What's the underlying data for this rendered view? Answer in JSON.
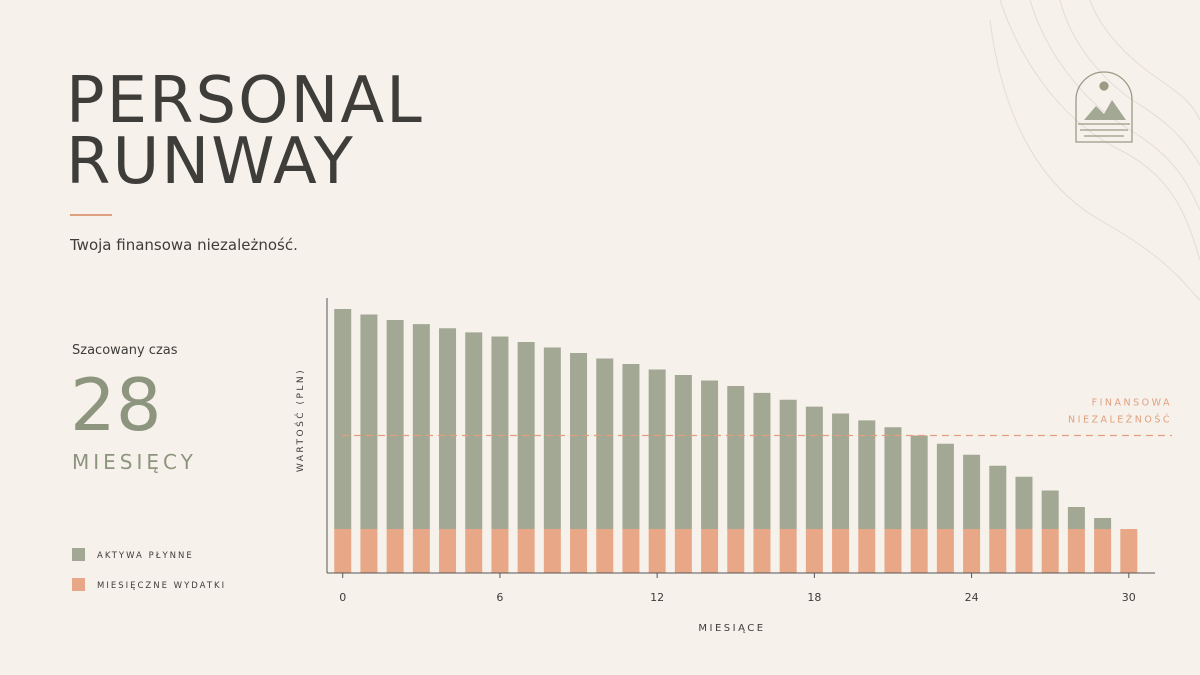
{
  "header": {
    "title_lines": [
      "PERSONAL",
      "RUNWAY"
    ],
    "subtitle": "Twoja finansowa niezależność."
  },
  "summary": {
    "label": "Szacowany czas",
    "value": 28,
    "unit": "MIESIĘCY"
  },
  "chart_data": {
    "type": "stacked_bar",
    "x": [
      0,
      1,
      2,
      3,
      4,
      5,
      6,
      7,
      8,
      9,
      10,
      11,
      12,
      13,
      14,
      15,
      16,
      17,
      18,
      19,
      20,
      21,
      22,
      23,
      24,
      25,
      26,
      27,
      28,
      29,
      30
    ],
    "series": [
      {
        "name": "AKTYWA PŁYNNE",
        "color": "#a3a895",
        "values": [
          80,
          78,
          76,
          74.5,
          73,
          71.5,
          70,
          68,
          66,
          64,
          62,
          60,
          58,
          56,
          54,
          52,
          49.5,
          47,
          44.5,
          42,
          39.5,
          37,
          34,
          31,
          27,
          23,
          19,
          14,
          8,
          4,
          0
        ]
      },
      {
        "name": "MIESIĘCZNE WYDATKI",
        "color": "#e8a888",
        "values": [
          16,
          16,
          16,
          16,
          16,
          16,
          16,
          16,
          16,
          16,
          16,
          16,
          16,
          16,
          16,
          16,
          16,
          16,
          16,
          16,
          16,
          16,
          16,
          16,
          16,
          16,
          16,
          16,
          16,
          16,
          16
        ]
      }
    ],
    "xlim": [
      -0.6,
      31
    ],
    "xticks": [
      0,
      6,
      12,
      18,
      24,
      30
    ],
    "ylim": [
      0,
      100
    ],
    "xlabel": "MIESIĄCE",
    "ylabel": "WARTOŚĆ (PLN)",
    "threshold": {
      "value": 50,
      "label_lines": [
        "FINANSOWA",
        "NIEZALEŻNOŚĆ"
      ],
      "color": "#e0a07f"
    }
  }
}
